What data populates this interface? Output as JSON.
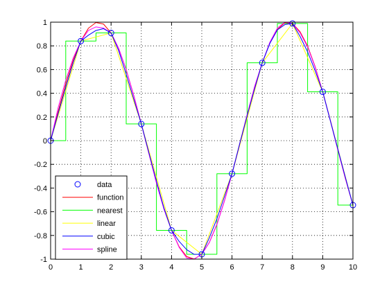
{
  "colors": {
    "data": "#0000ff",
    "function": "#ff0000",
    "nearest": "#00ff00",
    "linear": "#ffff00",
    "cubic": "#0000ff",
    "spline": "#ff00ff",
    "axis": "#000000",
    "grid": "#000000",
    "background": "#ffffff"
  },
  "chart_data": {
    "type": "line",
    "title": "",
    "xlabel": "",
    "ylabel": "",
    "xlim": [
      0,
      10
    ],
    "ylim": [
      -1,
      1
    ],
    "xticks": [
      0,
      1,
      2,
      3,
      4,
      5,
      6,
      7,
      8,
      9,
      10
    ],
    "yticks": [
      -1,
      -0.8,
      -0.6,
      -0.4,
      -0.2,
      0,
      0.2,
      0.4,
      0.6,
      0.8,
      1
    ],
    "xtick_labels": [
      "0",
      "1",
      "2",
      "3",
      "4",
      "5",
      "6",
      "7",
      "8",
      "9",
      "10"
    ],
    "ytick_labels": [
      "-1",
      "-0.8",
      "-0.6",
      "-0.4",
      "-0.2",
      "0",
      "0.2",
      "0.4",
      "0.6",
      "0.8",
      "1"
    ],
    "grid": true,
    "grid_style": "dotted",
    "legend_position": "bottom-left",
    "legend": [
      "data",
      "function",
      "nearest",
      "linear",
      "cubic",
      "spline"
    ],
    "series": [
      {
        "name": "data",
        "kind": "markers",
        "marker": "circle",
        "x": [
          0,
          1,
          2,
          3,
          4,
          5,
          6,
          7,
          8,
          9,
          10
        ],
        "y": [
          0,
          0.841,
          0.909,
          0.141,
          -0.757,
          -0.959,
          -0.279,
          0.657,
          0.989,
          0.412,
          -0.544
        ]
      },
      {
        "name": "function",
        "kind": "line",
        "x": [
          0,
          0.25,
          0.5,
          0.75,
          1,
          1.25,
          1.5,
          1.75,
          2,
          2.25,
          2.5,
          2.75,
          3,
          3.25,
          3.5,
          3.75,
          4,
          4.25,
          4.5,
          4.75,
          5,
          5.25,
          5.5,
          5.75,
          6,
          6.25,
          6.5,
          6.75,
          7,
          7.25,
          7.5,
          7.75,
          8,
          8.25,
          8.5,
          8.75,
          9,
          9.25,
          9.5,
          9.75,
          10
        ],
        "y": [
          0,
          0.247,
          0.479,
          0.682,
          0.841,
          0.949,
          0.997,
          0.984,
          0.909,
          0.778,
          0.598,
          0.382,
          0.141,
          -0.108,
          -0.351,
          -0.572,
          -0.757,
          -0.895,
          -0.978,
          -0.999,
          -0.959,
          -0.859,
          -0.706,
          -0.508,
          -0.279,
          -0.033,
          0.215,
          0.451,
          0.657,
          0.823,
          0.938,
          0.996,
          0.989,
          0.92,
          0.798,
          0.625,
          0.412,
          0.174,
          -0.075,
          -0.32,
          -0.544
        ]
      },
      {
        "name": "nearest",
        "kind": "step",
        "x": [
          0,
          0.5,
          0.5,
          1.5,
          1.5,
          2.5,
          2.5,
          3.5,
          3.5,
          4.5,
          4.5,
          5.5,
          5.5,
          6.5,
          6.5,
          7.5,
          7.5,
          8.5,
          8.5,
          9.5,
          9.5,
          10
        ],
        "y": [
          0,
          0,
          0.841,
          0.841,
          0.909,
          0.909,
          0.141,
          0.141,
          -0.757,
          -0.757,
          -0.959,
          -0.959,
          -0.279,
          -0.279,
          0.657,
          0.657,
          0.989,
          0.989,
          0.412,
          0.412,
          -0.544,
          -0.544
        ]
      },
      {
        "name": "linear",
        "kind": "line",
        "x": [
          0,
          1,
          2,
          3,
          4,
          5,
          6,
          7,
          8,
          9,
          10
        ],
        "y": [
          0,
          0.841,
          0.909,
          0.141,
          -0.757,
          -0.959,
          -0.279,
          0.657,
          0.989,
          0.412,
          -0.544
        ]
      },
      {
        "name": "cubic",
        "kind": "line",
        "x": [
          0,
          0.25,
          0.5,
          0.75,
          1,
          1.25,
          1.5,
          1.75,
          2,
          2.25,
          2.5,
          2.75,
          3,
          3.25,
          3.5,
          3.75,
          4,
          4.25,
          4.5,
          4.75,
          5,
          5.25,
          5.5,
          5.75,
          6,
          6.25,
          6.5,
          6.75,
          7,
          7.25,
          7.5,
          7.75,
          8,
          8.25,
          8.5,
          8.75,
          9,
          9.25,
          9.5,
          9.75,
          10
        ],
        "y": [
          0,
          0.23,
          0.45,
          0.66,
          0.841,
          0.89,
          0.93,
          0.945,
          0.909,
          0.76,
          0.56,
          0.35,
          0.141,
          -0.1,
          -0.34,
          -0.57,
          -0.757,
          -0.85,
          -0.92,
          -0.96,
          -0.959,
          -0.82,
          -0.66,
          -0.47,
          -0.279,
          -0.03,
          0.21,
          0.44,
          0.657,
          0.82,
          0.935,
          0.98,
          0.989,
          0.88,
          0.75,
          0.59,
          0.412,
          0.17,
          -0.07,
          -0.31,
          -0.544
        ]
      },
      {
        "name": "spline",
        "kind": "line",
        "x": [
          0,
          0.25,
          0.5,
          0.75,
          1,
          1.25,
          1.5,
          1.75,
          2,
          2.25,
          2.5,
          2.75,
          3,
          3.25,
          3.5,
          3.75,
          4,
          4.25,
          4.5,
          4.75,
          5,
          5.25,
          5.5,
          5.75,
          6,
          6.25,
          6.5,
          6.75,
          7,
          7.25,
          7.5,
          7.75,
          8,
          8.25,
          8.5,
          8.75,
          9,
          9.25,
          9.5,
          9.75,
          10
        ],
        "y": [
          0,
          0.28,
          0.51,
          0.7,
          0.841,
          0.93,
          0.96,
          0.95,
          0.909,
          0.78,
          0.6,
          0.38,
          0.141,
          -0.11,
          -0.36,
          -0.58,
          -0.757,
          -0.9,
          -0.99,
          -1.0,
          -0.959,
          -0.86,
          -0.71,
          -0.51,
          -0.279,
          -0.03,
          0.22,
          0.46,
          0.657,
          0.83,
          0.95,
          1.0,
          0.989,
          0.91,
          0.79,
          0.62,
          0.412,
          0.17,
          -0.08,
          -0.32,
          -0.544
        ]
      }
    ]
  }
}
